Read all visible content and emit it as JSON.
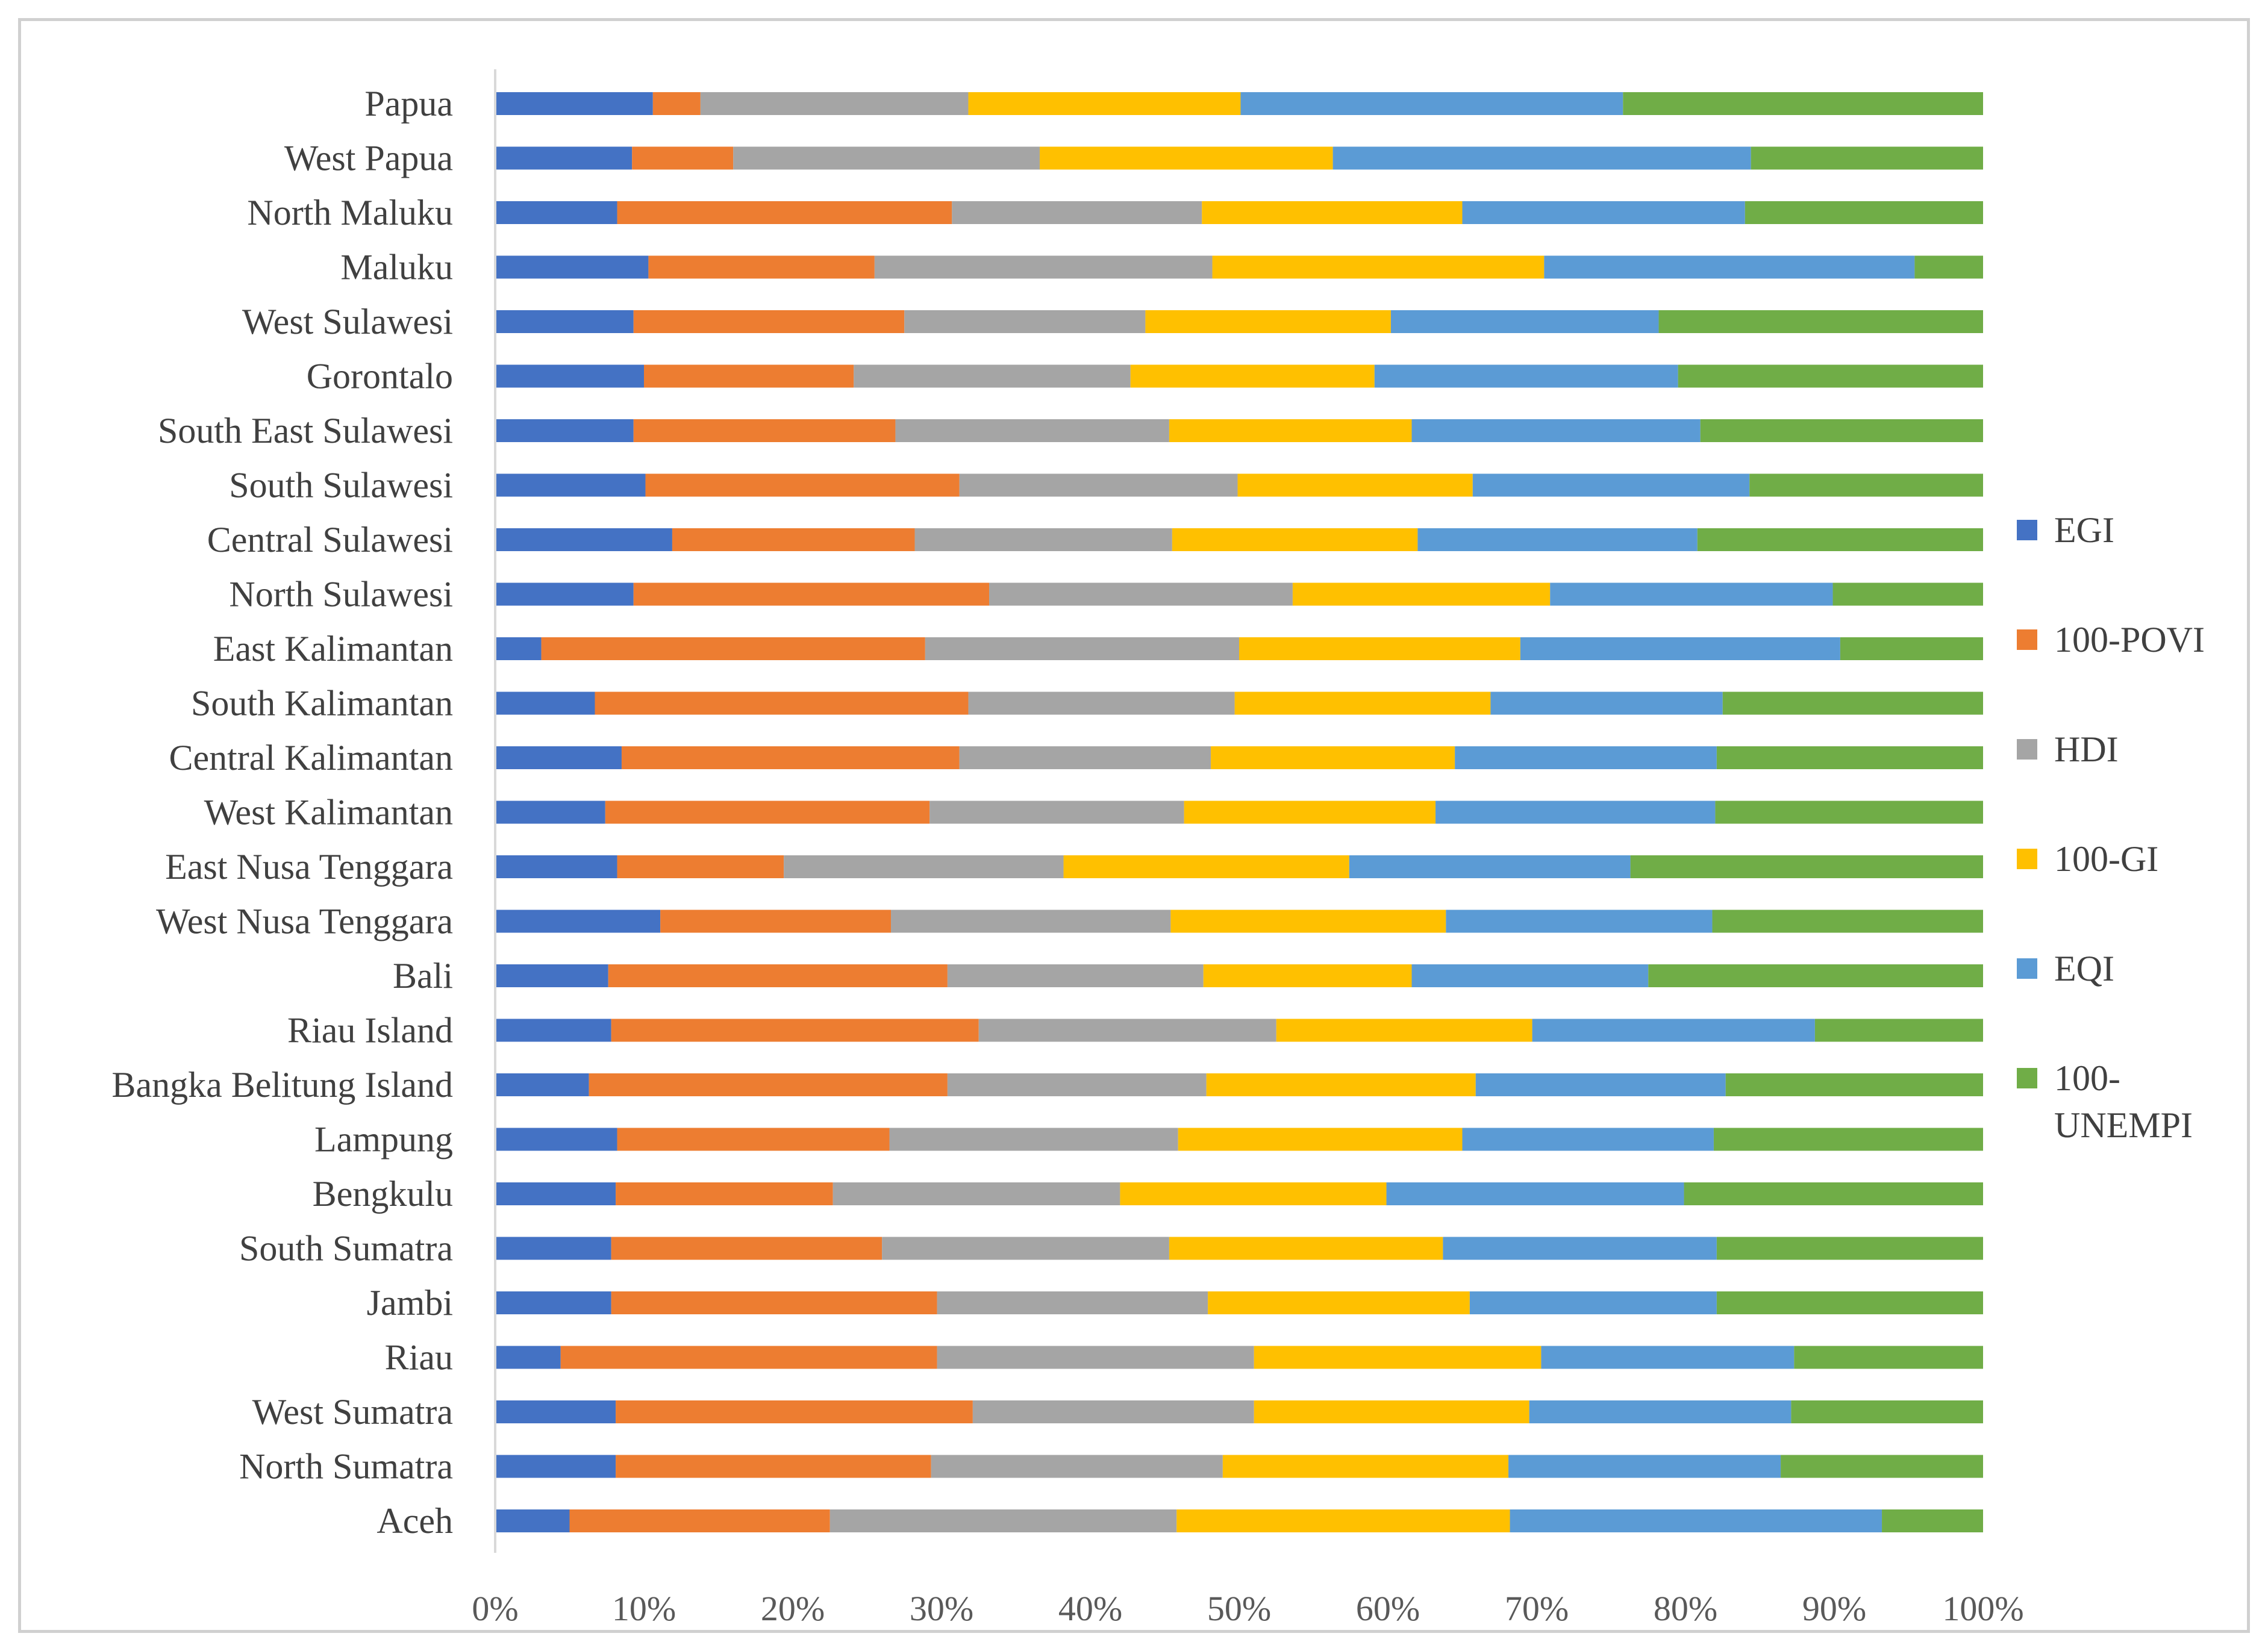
{
  "chart_data": {
    "type": "bar",
    "orientation": "horizontal",
    "stacked": "percent",
    "title": "",
    "xlabel": "",
    "ylabel": "",
    "xlim": [
      0,
      100
    ],
    "x_ticks": [
      "0%",
      "10%",
      "20%",
      "30%",
      "40%",
      "50%",
      "60%",
      "70%",
      "80%",
      "90%",
      "100%"
    ],
    "grid": false,
    "legend_position": "right",
    "categories": [
      "Papua",
      "West Papua",
      "North Maluku",
      "Maluku",
      "West Sulawesi",
      "Gorontalo",
      "South East Sulawesi",
      "South Sulawesi",
      "Central Sulawesi",
      "North Sulawesi",
      "East Kalimantan",
      "South Kalimantan",
      "Central Kalimantan",
      "West Kalimantan",
      "East Nusa Tenggara",
      "West Nusa Tenggara",
      "Bali",
      "Riau Island",
      "Bangka Belitung Island",
      "Lampung",
      "Bengkulu",
      "South Sumatra",
      "Jambi",
      "Riau",
      "West Sumatra",
      "North Sumatra",
      "Aceh"
    ],
    "series": [
      {
        "name": "EGI",
        "color": "#4472C4",
        "values": [
          10.6,
          9.2,
          8.2,
          10.3,
          9.3,
          10.0,
          9.3,
          10.1,
          11.9,
          9.3,
          3.1,
          6.7,
          8.5,
          7.4,
          8.2,
          11.1,
          7.6,
          7.8,
          6.3,
          8.2,
          8.1,
          7.8,
          7.8,
          4.4,
          8.1,
          8.1,
          5.0
        ]
      },
      {
        "name": "100-POVI",
        "color": "#ED7D31",
        "values": [
          3.2,
          6.8,
          22.5,
          15.2,
          18.2,
          14.1,
          17.6,
          21.1,
          16.3,
          23.9,
          25.8,
          25.1,
          22.7,
          21.8,
          11.2,
          15.5,
          22.8,
          24.7,
          24.1,
          18.3,
          14.6,
          18.2,
          21.9,
          25.3,
          24.0,
          21.2,
          17.5
        ]
      },
      {
        "name": "HDI",
        "color": "#A5A5A5",
        "values": [
          18.0,
          20.6,
          16.8,
          22.7,
          16.2,
          18.6,
          18.4,
          18.7,
          17.3,
          20.4,
          21.1,
          17.9,
          16.9,
          17.1,
          18.8,
          18.8,
          17.2,
          20.0,
          17.4,
          19.4,
          19.3,
          19.3,
          18.2,
          21.3,
          18.9,
          19.6,
          23.3
        ]
      },
      {
        "name": "100-GI",
        "color": "#FFC000",
        "values": [
          18.3,
          19.7,
          17.5,
          22.3,
          16.5,
          16.4,
          16.3,
          15.8,
          16.5,
          17.3,
          18.9,
          17.2,
          16.4,
          16.9,
          19.2,
          18.5,
          14.0,
          17.2,
          18.1,
          19.1,
          17.9,
          18.4,
          17.6,
          19.3,
          18.5,
          19.2,
          22.4
        ]
      },
      {
        "name": "EQI",
        "color": "#5B9BD5",
        "values": [
          25.7,
          28.1,
          19.0,
          24.9,
          18.0,
          20.4,
          19.4,
          18.6,
          18.8,
          19.0,
          21.5,
          15.6,
          17.6,
          18.8,
          18.9,
          17.9,
          15.9,
          19.0,
          16.8,
          16.9,
          20.0,
          18.4,
          16.6,
          17.0,
          17.6,
          18.3,
          25.0
        ]
      },
      {
        "name": "100-UNEMPI",
        "color": "#70AD47",
        "values": [
          24.2,
          15.6,
          16.0,
          4.6,
          21.8,
          20.5,
          19.0,
          15.7,
          19.2,
          10.1,
          9.6,
          17.5,
          17.9,
          18.0,
          23.7,
          18.2,
          22.5,
          11.3,
          17.3,
          18.1,
          20.1,
          17.9,
          17.9,
          12.7,
          12.9,
          13.6,
          6.8
        ]
      }
    ]
  }
}
